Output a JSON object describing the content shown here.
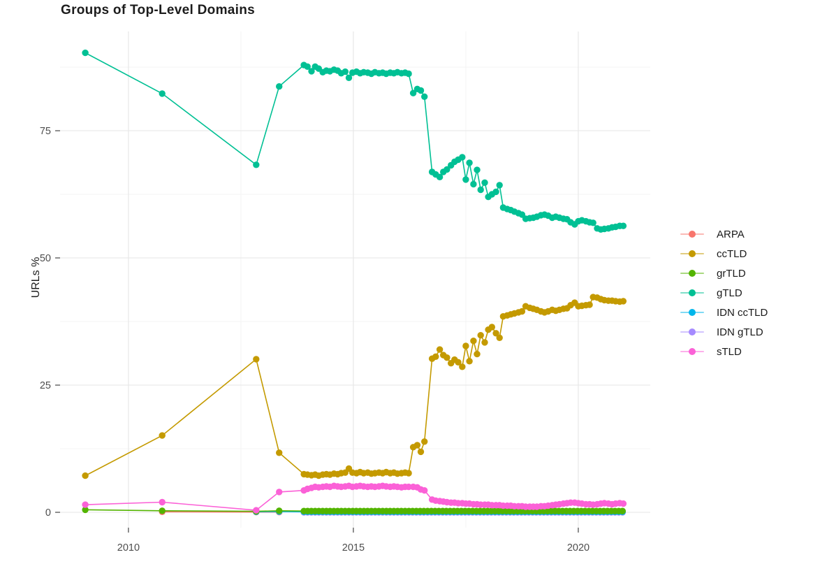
{
  "title": "Groups of Top-Level Domains",
  "axes": {
    "y_label": "URLs %",
    "x_tick_labels": [
      "2010",
      "2015",
      "2020"
    ],
    "y_tick_labels": [
      "0",
      "25",
      "50",
      "75"
    ],
    "tick_label_color": "#4d4d4d",
    "tick_mark_color": "#333333",
    "grid_major_color": "#e9e9e9",
    "grid_minor_color": "#f3f3f3"
  },
  "legend": {
    "items": [
      {
        "label": "ARPA",
        "color": "#F8766D"
      },
      {
        "label": "ccTLD",
        "color": "#C49A00"
      },
      {
        "label": "grTLD",
        "color": "#53B400"
      },
      {
        "label": "gTLD",
        "color": "#00C094"
      },
      {
        "label": "IDN ccTLD",
        "color": "#00B6EB"
      },
      {
        "label": "IDN gTLD",
        "color": "#A58AFF"
      },
      {
        "label": "sTLD",
        "color": "#FB61D7"
      }
    ]
  },
  "chart_data": {
    "type": "line",
    "title": "Groups of Top-Level Domains",
    "xlabel": "",
    "ylabel": "URLs %",
    "xlim": [
      2008.48,
      2021.6
    ],
    "ylim": [
      -3.02,
      94.51
    ],
    "x_major_ticks": [
      2010,
      2015,
      2020
    ],
    "x_minor_ticks": [
      2012.5,
      2017.5
    ],
    "y_major_ticks": [
      0,
      25,
      50,
      75
    ],
    "y_minor_ticks": [
      12.5,
      37.5,
      62.5,
      87.5
    ],
    "grid": true,
    "legend_position": "right",
    "marker_radius": 4.7,
    "series": [
      {
        "name": "ARPA",
        "color": "#F8766D",
        "z": 1,
        "points": [
          [
            2010.75,
            0.1
          ],
          [
            2012.84,
            0.05
          ],
          [
            2013.35,
            0.05
          ]
        ]
      },
      {
        "name": "ccTLD",
        "color": "#C49A00",
        "z": 5,
        "points": [
          [
            2009.04,
            7.2
          ],
          [
            2010.75,
            15.1
          ],
          [
            2012.84,
            30.1
          ],
          [
            2013.35,
            11.7
          ],
          [
            2013.9,
            7.5
          ],
          [
            2013.98,
            7.4
          ],
          [
            2014.07,
            7.3
          ],
          [
            2014.15,
            7.4
          ],
          [
            2014.23,
            7.2
          ],
          [
            2014.32,
            7.4
          ],
          [
            2014.4,
            7.5
          ],
          [
            2014.48,
            7.4
          ],
          [
            2014.57,
            7.6
          ],
          [
            2014.65,
            7.5
          ],
          [
            2014.73,
            7.7
          ],
          [
            2014.82,
            7.8
          ],
          [
            2014.9,
            8.6
          ],
          [
            2014.98,
            7.8
          ],
          [
            2015.07,
            7.7
          ],
          [
            2015.15,
            7.9
          ],
          [
            2015.23,
            7.7
          ],
          [
            2015.32,
            7.8
          ],
          [
            2015.4,
            7.6
          ],
          [
            2015.48,
            7.7
          ],
          [
            2015.57,
            7.8
          ],
          [
            2015.65,
            7.7
          ],
          [
            2015.73,
            7.9
          ],
          [
            2015.82,
            7.7
          ],
          [
            2015.9,
            7.8
          ],
          [
            2015.98,
            7.6
          ],
          [
            2016.07,
            7.7
          ],
          [
            2016.15,
            7.8
          ],
          [
            2016.23,
            7.7
          ],
          [
            2016.33,
            12.8
          ],
          [
            2016.42,
            13.2
          ],
          [
            2016.5,
            11.9
          ],
          [
            2016.58,
            13.9
          ],
          [
            2016.75,
            30.2
          ],
          [
            2016.83,
            30.6
          ],
          [
            2016.92,
            32.0
          ],
          [
            2017.0,
            30.9
          ],
          [
            2017.08,
            30.4
          ],
          [
            2017.17,
            29.3
          ],
          [
            2017.25,
            30.0
          ],
          [
            2017.33,
            29.5
          ],
          [
            2017.42,
            28.6
          ],
          [
            2017.5,
            32.7
          ],
          [
            2017.58,
            29.7
          ],
          [
            2017.67,
            33.7
          ],
          [
            2017.75,
            31.1
          ],
          [
            2017.83,
            34.8
          ],
          [
            2017.92,
            33.4
          ],
          [
            2018.0,
            35.9
          ],
          [
            2018.08,
            36.4
          ],
          [
            2018.17,
            35.2
          ],
          [
            2018.25,
            34.3
          ],
          [
            2018.33,
            38.5
          ],
          [
            2018.42,
            38.7
          ],
          [
            2018.5,
            38.9
          ],
          [
            2018.58,
            39.1
          ],
          [
            2018.67,
            39.3
          ],
          [
            2018.75,
            39.5
          ],
          [
            2018.83,
            40.5
          ],
          [
            2018.92,
            40.2
          ],
          [
            2019.0,
            40.0
          ],
          [
            2019.08,
            39.8
          ],
          [
            2019.17,
            39.5
          ],
          [
            2019.25,
            39.3
          ],
          [
            2019.33,
            39.5
          ],
          [
            2019.42,
            39.8
          ],
          [
            2019.5,
            39.6
          ],
          [
            2019.58,
            39.8
          ],
          [
            2019.67,
            40.0
          ],
          [
            2019.75,
            40.1
          ],
          [
            2019.83,
            40.7
          ],
          [
            2019.92,
            41.2
          ],
          [
            2020.0,
            40.5
          ],
          [
            2020.08,
            40.6
          ],
          [
            2020.17,
            40.7
          ],
          [
            2020.25,
            40.8
          ],
          [
            2020.33,
            42.3
          ],
          [
            2020.42,
            42.2
          ],
          [
            2020.5,
            41.9
          ],
          [
            2020.58,
            41.7
          ],
          [
            2020.67,
            41.6
          ],
          [
            2020.75,
            41.6
          ],
          [
            2020.83,
            41.5
          ],
          [
            2020.92,
            41.4
          ],
          [
            2021.0,
            41.5
          ]
        ]
      },
      {
        "name": "grTLD",
        "color": "#53B400",
        "z": 4,
        "points": [
          [
            2009.04,
            0.5
          ],
          [
            2010.75,
            0.3
          ],
          [
            2012.84,
            0.2
          ],
          [
            2013.35,
            0.3
          ]
        ],
        "flat": {
          "from": 2013.9,
          "to": 2021.0,
          "value": 0.25,
          "per_year": 12
        }
      },
      {
        "name": "gTLD",
        "color": "#00C094",
        "z": 6,
        "points": [
          [
            2009.04,
            90.3
          ],
          [
            2010.75,
            82.3
          ],
          [
            2012.84,
            68.3
          ],
          [
            2013.35,
            83.7
          ],
          [
            2013.9,
            87.9
          ],
          [
            2013.98,
            87.6
          ],
          [
            2014.07,
            86.7
          ],
          [
            2014.15,
            87.6
          ],
          [
            2014.23,
            87.2
          ],
          [
            2014.32,
            86.5
          ],
          [
            2014.4,
            86.8
          ],
          [
            2014.48,
            86.7
          ],
          [
            2014.57,
            87.0
          ],
          [
            2014.65,
            86.8
          ],
          [
            2014.73,
            86.3
          ],
          [
            2014.82,
            86.6
          ],
          [
            2014.9,
            85.4
          ],
          [
            2014.98,
            86.4
          ],
          [
            2015.07,
            86.6
          ],
          [
            2015.15,
            86.3
          ],
          [
            2015.23,
            86.5
          ],
          [
            2015.32,
            86.4
          ],
          [
            2015.4,
            86.2
          ],
          [
            2015.48,
            86.5
          ],
          [
            2015.57,
            86.3
          ],
          [
            2015.65,
            86.4
          ],
          [
            2015.73,
            86.2
          ],
          [
            2015.82,
            86.4
          ],
          [
            2015.9,
            86.3
          ],
          [
            2015.98,
            86.5
          ],
          [
            2016.07,
            86.3
          ],
          [
            2016.15,
            86.4
          ],
          [
            2016.23,
            86.2
          ],
          [
            2016.33,
            82.4
          ],
          [
            2016.42,
            83.2
          ],
          [
            2016.5,
            82.9
          ],
          [
            2016.58,
            81.7
          ],
          [
            2016.75,
            66.9
          ],
          [
            2016.83,
            66.4
          ],
          [
            2016.92,
            65.9
          ],
          [
            2017.0,
            66.9
          ],
          [
            2017.08,
            67.4
          ],
          [
            2017.17,
            68.2
          ],
          [
            2017.25,
            68.9
          ],
          [
            2017.33,
            69.3
          ],
          [
            2017.42,
            69.8
          ],
          [
            2017.5,
            65.4
          ],
          [
            2017.58,
            68.7
          ],
          [
            2017.67,
            64.5
          ],
          [
            2017.75,
            67.3
          ],
          [
            2017.83,
            63.4
          ],
          [
            2017.92,
            64.8
          ],
          [
            2018.0,
            62.0
          ],
          [
            2018.08,
            62.5
          ],
          [
            2018.17,
            63.0
          ],
          [
            2018.25,
            64.3
          ],
          [
            2018.33,
            59.9
          ],
          [
            2018.42,
            59.6
          ],
          [
            2018.5,
            59.4
          ],
          [
            2018.58,
            59.1
          ],
          [
            2018.67,
            58.8
          ],
          [
            2018.75,
            58.5
          ],
          [
            2018.83,
            57.7
          ],
          [
            2018.92,
            57.8
          ],
          [
            2019.0,
            57.9
          ],
          [
            2019.08,
            58.1
          ],
          [
            2019.17,
            58.4
          ],
          [
            2019.25,
            58.5
          ],
          [
            2019.33,
            58.3
          ],
          [
            2019.42,
            57.9
          ],
          [
            2019.5,
            58.1
          ],
          [
            2019.58,
            57.9
          ],
          [
            2019.67,
            57.7
          ],
          [
            2019.75,
            57.6
          ],
          [
            2019.83,
            57.0
          ],
          [
            2019.92,
            56.6
          ],
          [
            2020.0,
            57.2
          ],
          [
            2020.08,
            57.4
          ],
          [
            2020.17,
            57.2
          ],
          [
            2020.25,
            57.0
          ],
          [
            2020.33,
            56.9
          ],
          [
            2020.42,
            55.8
          ],
          [
            2020.5,
            55.6
          ],
          [
            2020.58,
            55.7
          ],
          [
            2020.67,
            55.8
          ],
          [
            2020.75,
            56.0
          ],
          [
            2020.83,
            56.1
          ],
          [
            2020.92,
            56.3
          ],
          [
            2021.0,
            56.3
          ]
        ]
      },
      {
        "name": "IDN ccTLD",
        "color": "#00B6EB",
        "z": 3,
        "points": [
          [
            2012.84,
            0.1
          ],
          [
            2013.35,
            0.15
          ]
        ],
        "flat": {
          "from": 2013.9,
          "to": 2021.0,
          "value": 0.1,
          "per_year": 12
        }
      },
      {
        "name": "IDN gTLD",
        "color": "#A58AFF",
        "z": 2,
        "points": [],
        "flat": {
          "from": 2013.9,
          "to": 2021.0,
          "value": 0.0,
          "per_year": 12
        }
      },
      {
        "name": "sTLD",
        "color": "#FB61D7",
        "z": 7,
        "points": [
          [
            2009.04,
            1.5
          ],
          [
            2010.75,
            2.0
          ],
          [
            2012.84,
            0.4
          ],
          [
            2013.35,
            4.0
          ],
          [
            2013.9,
            4.3
          ],
          [
            2013.98,
            4.6
          ],
          [
            2014.07,
            4.8
          ],
          [
            2014.15,
            5.0
          ],
          [
            2014.23,
            4.9
          ],
          [
            2014.32,
            5.0
          ],
          [
            2014.4,
            5.1
          ],
          [
            2014.48,
            5.0
          ],
          [
            2014.57,
            5.2
          ],
          [
            2014.65,
            5.1
          ],
          [
            2014.73,
            5.0
          ],
          [
            2014.82,
            5.1
          ],
          [
            2014.9,
            5.2
          ],
          [
            2014.98,
            5.0
          ],
          [
            2015.07,
            5.1
          ],
          [
            2015.15,
            5.2
          ],
          [
            2015.23,
            5.1
          ],
          [
            2015.32,
            5.0
          ],
          [
            2015.4,
            5.1
          ],
          [
            2015.48,
            5.0
          ],
          [
            2015.57,
            5.1
          ],
          [
            2015.65,
            5.2
          ],
          [
            2015.73,
            5.1
          ],
          [
            2015.82,
            5.0
          ],
          [
            2015.9,
            5.1
          ],
          [
            2015.98,
            5.0
          ],
          [
            2016.07,
            4.9
          ],
          [
            2016.15,
            5.0
          ],
          [
            2016.23,
            5.0
          ],
          [
            2016.33,
            5.0
          ],
          [
            2016.42,
            4.9
          ],
          [
            2016.5,
            4.5
          ],
          [
            2016.58,
            4.3
          ],
          [
            2016.75,
            2.5
          ],
          [
            2016.83,
            2.3
          ],
          [
            2016.92,
            2.2
          ],
          [
            2017.0,
            2.1
          ],
          [
            2017.08,
            2.0
          ],
          [
            2017.17,
            1.9
          ],
          [
            2017.25,
            1.9
          ],
          [
            2017.33,
            1.8
          ],
          [
            2017.42,
            1.8
          ],
          [
            2017.5,
            1.7
          ],
          [
            2017.58,
            1.7
          ],
          [
            2017.67,
            1.6
          ],
          [
            2017.75,
            1.6
          ],
          [
            2017.83,
            1.5
          ],
          [
            2017.92,
            1.5
          ],
          [
            2018.0,
            1.5
          ],
          [
            2018.08,
            1.4
          ],
          [
            2018.17,
            1.4
          ],
          [
            2018.25,
            1.4
          ],
          [
            2018.33,
            1.3
          ],
          [
            2018.42,
            1.3
          ],
          [
            2018.5,
            1.3
          ],
          [
            2018.58,
            1.2
          ],
          [
            2018.67,
            1.2
          ],
          [
            2018.75,
            1.2
          ],
          [
            2018.83,
            1.1
          ],
          [
            2018.92,
            1.1
          ],
          [
            2019.0,
            1.1
          ],
          [
            2019.08,
            1.1
          ],
          [
            2019.17,
            1.2
          ],
          [
            2019.25,
            1.2
          ],
          [
            2019.33,
            1.3
          ],
          [
            2019.42,
            1.4
          ],
          [
            2019.5,
            1.5
          ],
          [
            2019.58,
            1.6
          ],
          [
            2019.67,
            1.7
          ],
          [
            2019.75,
            1.8
          ],
          [
            2019.83,
            1.9
          ],
          [
            2019.92,
            1.9
          ],
          [
            2020.0,
            1.8
          ],
          [
            2020.08,
            1.7
          ],
          [
            2020.17,
            1.6
          ],
          [
            2020.25,
            1.6
          ],
          [
            2020.33,
            1.5
          ],
          [
            2020.42,
            1.6
          ],
          [
            2020.5,
            1.7
          ],
          [
            2020.58,
            1.8
          ],
          [
            2020.67,
            1.7
          ],
          [
            2020.75,
            1.6
          ],
          [
            2020.83,
            1.7
          ],
          [
            2020.92,
            1.8
          ],
          [
            2021.0,
            1.7
          ]
        ]
      }
    ]
  }
}
